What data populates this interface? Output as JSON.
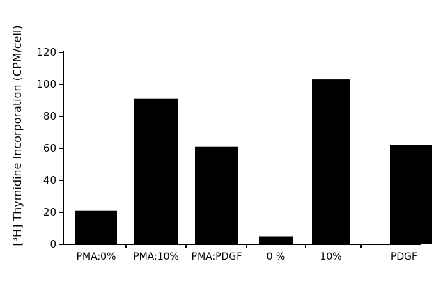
{
  "chart_data": {
    "type": "bar",
    "categories": [
      "PMA:0%",
      "PMA:10%",
      "PMA:PDGF",
      "0 %",
      "10%",
      "PDGF"
    ],
    "values": [
      21,
      91,
      61,
      5,
      103,
      62
    ],
    "title": "",
    "xlabel": "",
    "ylabel": "[³H] Thymidine Incorporation (CPM/cell)",
    "ylim": [
      0,
      120
    ],
    "yticks": [
      "0",
      "20",
      "40",
      "60",
      "80",
      "100",
      "120"
    ],
    "grid": false,
    "bar_color": "#000000"
  }
}
